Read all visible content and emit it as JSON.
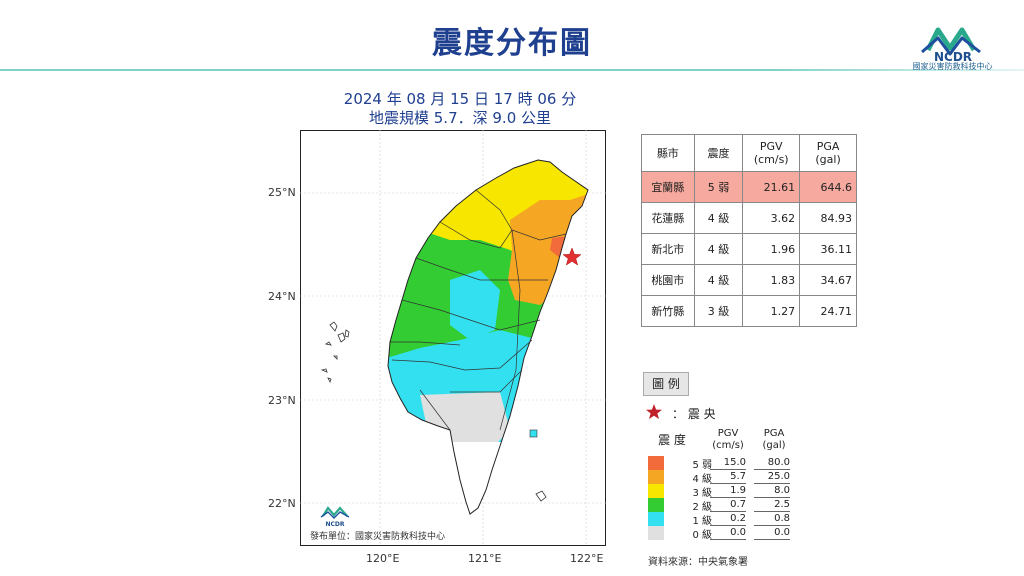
{
  "title": "震度分布圖",
  "org": {
    "name": "國家災害防救科技中心",
    "logo_text": "NCDR"
  },
  "event": {
    "datetime": "2024 年 08 月 15 日 17 時 06 分",
    "magnitude_depth": "地震規模 5.7．深 9.0 公里"
  },
  "map": {
    "lat_labels": [
      "25°N",
      "24°N",
      "23°N",
      "22°N"
    ],
    "lon_labels": [
      "120°E",
      "121°E",
      "122°E"
    ],
    "publisher": "發布單位：國家災害防救科技中心"
  },
  "table": {
    "headers": [
      "縣市",
      "震度",
      "PGV (cm/s)",
      "PGA (gal)"
    ],
    "header_lines": [
      [
        "縣市"
      ],
      [
        "震度"
      ],
      [
        "PGV",
        "(cm/s)"
      ],
      [
        "PGA",
        "(gal)"
      ]
    ],
    "rows": [
      {
        "county": "宜蘭縣",
        "intensity": "5 弱",
        "pgv": "21.61",
        "pga": "644.6",
        "highlight": true
      },
      {
        "county": "花蓮縣",
        "intensity": "4 級",
        "pgv": "3.62",
        "pga": "84.93",
        "highlight": false
      },
      {
        "county": "新北市",
        "intensity": "4 級",
        "pgv": "1.96",
        "pga": "36.11",
        "highlight": false
      },
      {
        "county": "桃園市",
        "intensity": "4 級",
        "pgv": "1.83",
        "pga": "34.67",
        "highlight": false
      },
      {
        "county": "新竹縣",
        "intensity": "3 級",
        "pgv": "1.27",
        "pga": "24.71",
        "highlight": false
      }
    ]
  },
  "legend": {
    "title": "圖 例",
    "epicenter": "： 震 央",
    "col_intensity": "震 度",
    "col_pgv": [
      "PGV",
      "(cm/s)"
    ],
    "col_pga": [
      "PGA",
      "(gal)"
    ],
    "levels": [
      {
        "name": "5 弱",
        "pgv": "15.0",
        "pga": "80.0",
        "color": "#f26b3a"
      },
      {
        "name": "4 級",
        "pgv": "5.7",
        "pga": "25.0",
        "color": "#f5a623"
      },
      {
        "name": "3 級",
        "pgv": "1.9",
        "pga": "8.0",
        "color": "#f7e600"
      },
      {
        "name": "2 級",
        "pgv": "0.7",
        "pga": "2.5",
        "color": "#33cc33"
      },
      {
        "name": "1 級",
        "pgv": "0.2",
        "pga": "0.8",
        "color": "#33e0f0"
      },
      {
        "name": "0 級",
        "pgv": "0.0",
        "pga": "0.0",
        "color": "#e0e0e0"
      }
    ]
  },
  "source": "資料來源：中央氣象署"
}
